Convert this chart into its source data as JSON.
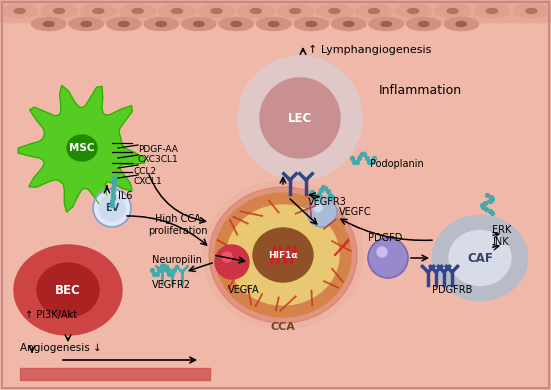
{
  "bg_color": "#f0b8a8",
  "lymph_text": "↑ Lymphangiogenesis",
  "inflammation_text": "Inflammation",
  "angiogenesis_text": "Angiogenesis ↓",
  "msc_label": "MSC",
  "ev_label": "EV",
  "bec_label": "BEC",
  "lec_label": "LEC",
  "cca_label": "CCA",
  "hif_label": "HIF1α",
  "caf_label": "CAF",
  "pdgfd_label": "PDGFD",
  "pdgf_signals": "PDGF-AA\nCXC3CL1",
  "ccl_signals": "CCL2\nCXCL1",
  "il6_label": "IL6",
  "high_cca_label": "High CCA\nproliferation",
  "vegfc_label": "VEGFC",
  "vegfr3_label": "VEGFR3",
  "podoplanin_label": "Podoplanin",
  "neuropilin_label": "Neuropilin",
  "vegfr2_label": "VEGFR2",
  "vegfa_label": "VEGFA",
  "pi3k_label": "↑ PI3K/Akt",
  "erk_label": "ERK",
  "jnk_label": "JNK",
  "pdgfrb_label": "PDGFRB",
  "green_color": "#55cc22",
  "green_dark": "#33aa00",
  "green_nucleus": "#228800",
  "red_cell_color": "#cc4444",
  "red_dark": "#aa2222",
  "lec_outer": "#e0c8c8",
  "lec_inner": "#c89090",
  "caf_outer": "#b8bcc8",
  "caf_inner": "#d8dce8",
  "cca_yellow": "#e8c870",
  "cca_orange": "#d4844a",
  "cca_brown": "#905028",
  "teal_color": "#44aaaa",
  "navy_color": "#334488",
  "purple_cell": "#9988cc",
  "border_color": "#cc8888",
  "tissue_outer": "#d4948888",
  "tissue_nucleus": "#b06858"
}
